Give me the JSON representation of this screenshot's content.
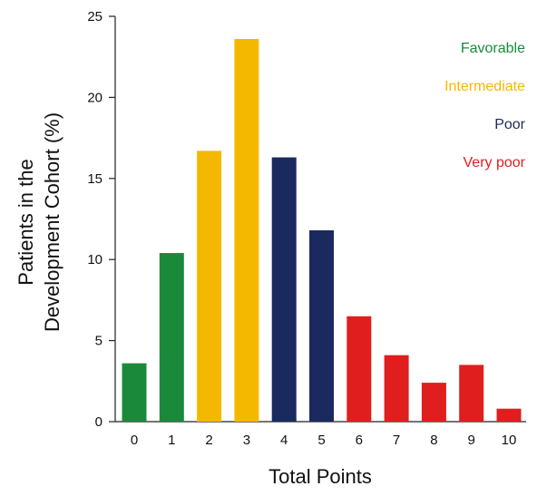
{
  "chart_data": {
    "type": "bar",
    "xlabel": "Total Points",
    "ylabel": [
      "Patients in the",
      "Development Cohort (%)"
    ],
    "ylim": [
      0,
      25
    ],
    "yticks": [
      0,
      5,
      10,
      15,
      20,
      25
    ],
    "categories": [
      "0",
      "1",
      "2",
      "3",
      "4",
      "5",
      "6",
      "7",
      "8",
      "9",
      "10"
    ],
    "values": [
      3.6,
      10.4,
      16.7,
      23.6,
      16.3,
      11.8,
      6.5,
      4.1,
      2.4,
      3.5,
      0.8
    ],
    "bar_groups": [
      "Favorable",
      "Favorable",
      "Intermediate",
      "Intermediate",
      "Poor",
      "Poor",
      "Very poor",
      "Very poor",
      "Very poor",
      "Very poor",
      "Very poor"
    ],
    "legend": {
      "placement": "top-right",
      "items": [
        {
          "label": "Favorable",
          "color": "#1a8a3a"
        },
        {
          "label": "Intermediate",
          "color": "#f5b800"
        },
        {
          "label": "Poor",
          "color": "#1a2a5e"
        },
        {
          "label": "Very poor",
          "color": "#e01e1e"
        }
      ]
    },
    "grid": false
  }
}
